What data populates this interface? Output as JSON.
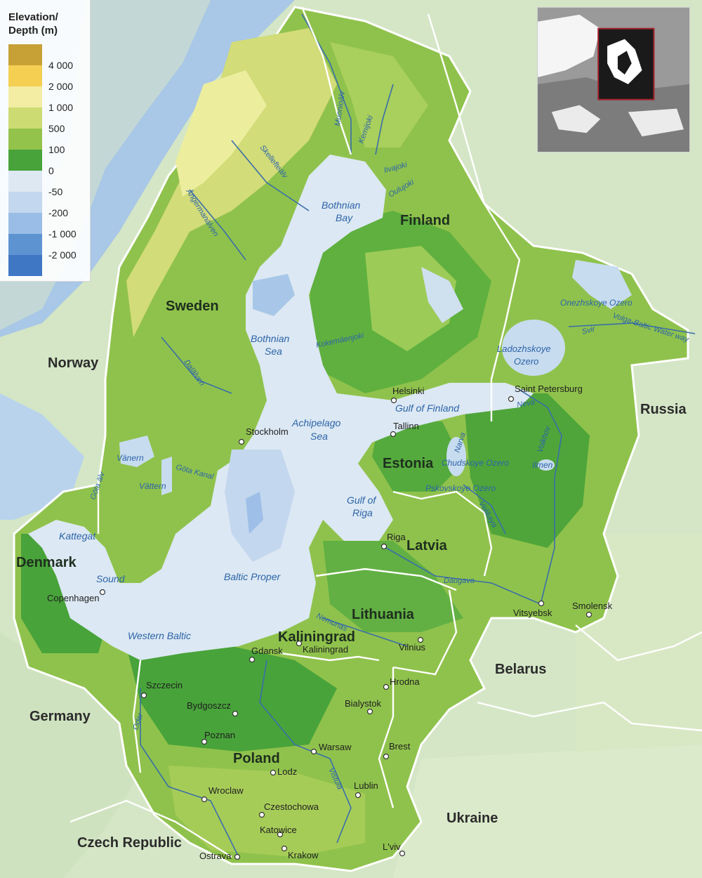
{
  "legend": {
    "title_line1": "Elevation/",
    "title_line2": "Depth (m)",
    "items": [
      {
        "label": "4 000",
        "color": "#c8a136"
      },
      {
        "label": "2 000",
        "color": "#f4cf52"
      },
      {
        "label": "1 000",
        "color": "#f3eda3"
      },
      {
        "label": "500",
        "color": "#cddb73"
      },
      {
        "label": "100",
        "color": "#94c34c"
      },
      {
        "label": "0",
        "color": "#48a33a"
      },
      {
        "label": "-50",
        "color": "#dde8f3"
      },
      {
        "label": "-200",
        "color": "#c3d7ee"
      },
      {
        "label": "-1 000",
        "color": "#99bde6"
      },
      {
        "label": "-2 000",
        "color": "#5e93d2"
      },
      {
        "label": "",
        "color": "#3f77c5"
      }
    ]
  },
  "countries": {
    "norway": "Norway",
    "sweden": "Sweden",
    "finland": "Finland",
    "russia": "Russia",
    "estonia": "Estonia",
    "latvia": "Latvia",
    "lithuania": "Lithuania",
    "kaliningrad": "Kaliningrad",
    "belarus": "Belarus",
    "denmark": "Denmark",
    "germany": "Germany",
    "poland": "Poland",
    "ukraine": "Ukraine",
    "czech": "Czech Republic"
  },
  "cities": {
    "stockholm": "Stockholm",
    "helsinki": "Helsinki",
    "tallinn": "Tallinn",
    "saint_petersburg": "Saint Petersburg",
    "riga": "Riga",
    "copenhagen": "Copenhagen",
    "vilnius": "Vilnius",
    "kaliningrad": "Kaliningrad",
    "gdansk": "Gdansk",
    "szczecin": "Szczecin",
    "bydgoszcz": "Bydgoszcz",
    "poznan": "Poznan",
    "warsaw": "Warsaw",
    "bialystok": "Bialystok",
    "hrodna": "Hrodna",
    "brest": "Brest",
    "lodz": "Lodz",
    "lublin": "Lublin",
    "wroclaw": "Wroclaw",
    "czestochowa": "Czestochowa",
    "katowice": "Katowice",
    "krakow": "Krakow",
    "ostrava": "Ostrava",
    "lviv": "L'viv",
    "vitsyebsk": "Vitsyebsk",
    "smolensk": "Smolensk"
  },
  "water": {
    "bothnian_bay_1": "Bothnian",
    "bothnian_bay_2": "Bay",
    "bothnian_sea_1": "Bothnian",
    "bothnian_sea_2": "Sea",
    "archipelago_1": "Achipelago",
    "archipelago_2": "Sea",
    "gulf_finland": "Gulf of Finland",
    "gulf_riga_1": "Gulf of",
    "gulf_riga_2": "Riga",
    "baltic_proper": "Baltic Proper",
    "western_baltic": "Western Baltic",
    "kattegat": "Kattegat",
    "sound": "Sound",
    "vanern": "Vänern",
    "vattern": "Vättern",
    "ladoga_1": "Ladozhskoye",
    "ladoga_2": "Ozero",
    "onega": "Onezhskoye Ozero",
    "chudskoye": "Chudskoye Ozero",
    "pskovskoye": "Pskovskoye Ozero",
    "ilmen": "Ilmen"
  },
  "rivers": {
    "muonioalv": "Muonioälv",
    "kemijoki": "Kemijoki",
    "livajoki": "Iivajoki",
    "oulujoki": "Oulujoki",
    "skelleftealv": "Skellefteälv",
    "angermanalven": "Ångermanälven",
    "dalalven": "Dalälven",
    "gota_kanal": "Göta Kanal",
    "gotaalv": "Göta älv",
    "kokemaenjoki": "Kokemäenjoki",
    "svir": "Svir",
    "volga_baltic": "Volga-Baltic Water way",
    "neva": "Neva",
    "narva": "Narva",
    "volkhov": "Volkhov",
    "velikaya": "Velikaya",
    "daugava": "Daugava",
    "nemunas": "Nemunas",
    "oder": "Oder",
    "vistula": "Vistula"
  }
}
